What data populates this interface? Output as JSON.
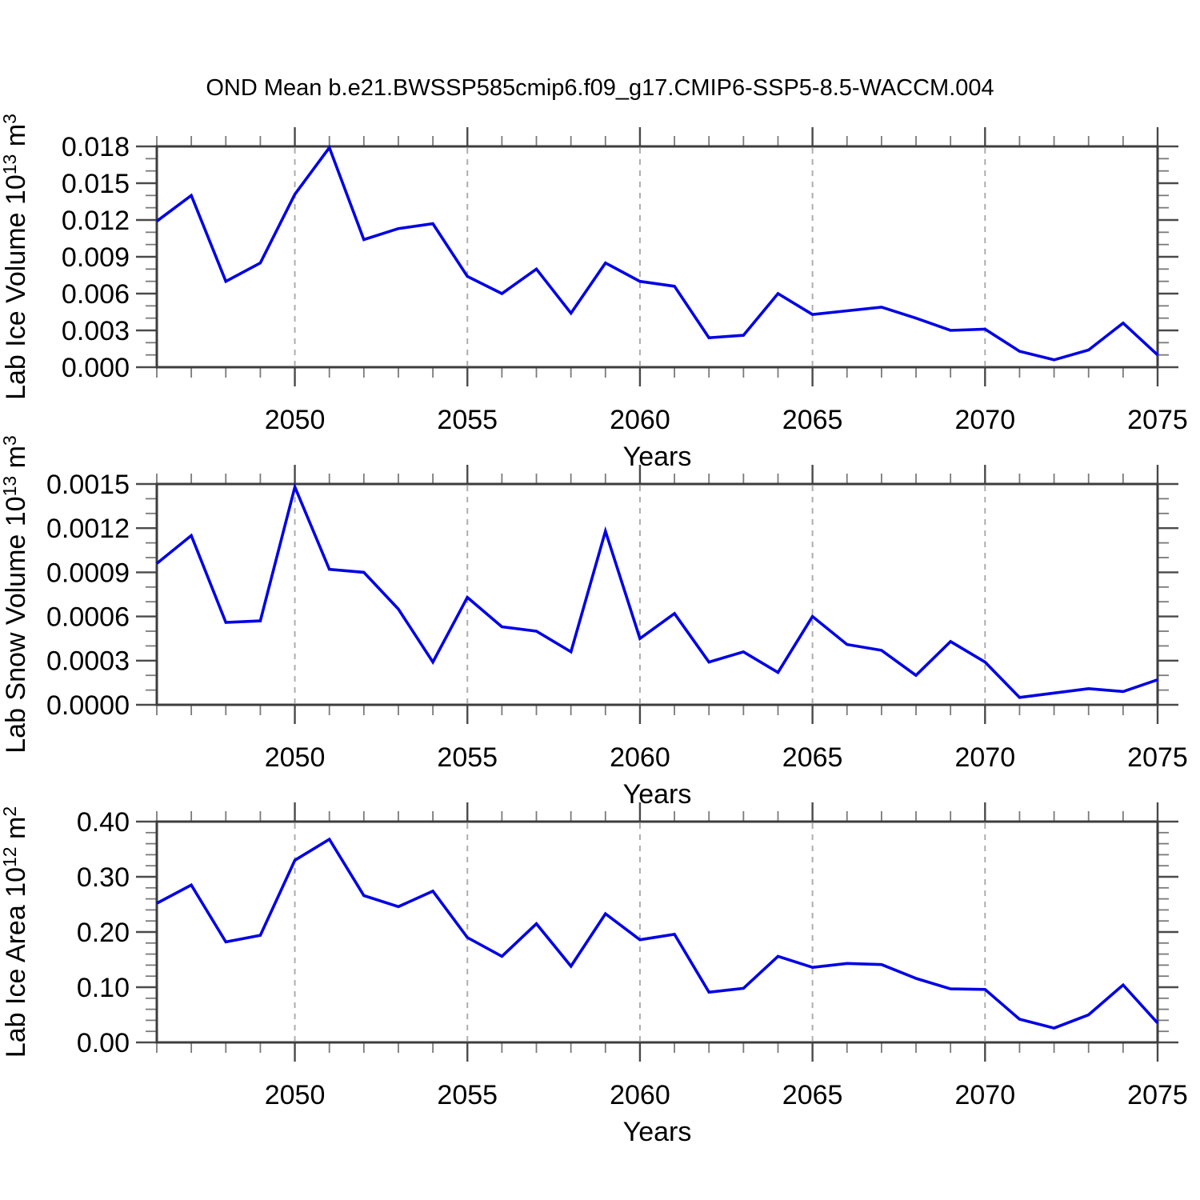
{
  "title": "OND Mean b.e21.BWSSP585cmip6.f09_g17.CMIP6-SSP5-8.5-WACCM.004",
  "colors": {
    "line": "#0000e6",
    "axis": "#3d3d3d",
    "tick_major": "#4a4a4a",
    "tick_minor": "#7a7a7a",
    "grid": "#adadad",
    "text": "#000000",
    "background": "#ffffff"
  },
  "x_axis": {
    "label": "Years",
    "min": 2046,
    "max": 2075,
    "major_ticks": [
      2050,
      2055,
      2060,
      2065,
      2070,
      2075
    ],
    "major_tick_labels": [
      "2050",
      "2055",
      "2060",
      "2065",
      "2070",
      "2075"
    ],
    "gridlines": [
      2050,
      2055,
      2060,
      2065,
      2070
    ],
    "minor_step": 1
  },
  "years": [
    2046,
    2047,
    2048,
    2049,
    2050,
    2051,
    2052,
    2053,
    2054,
    2055,
    2056,
    2057,
    2058,
    2059,
    2060,
    2061,
    2062,
    2063,
    2064,
    2065,
    2066,
    2067,
    2068,
    2069,
    2070,
    2071,
    2072,
    2073,
    2074,
    2075
  ],
  "chart_data": [
    {
      "type": "line",
      "name": "lab-ice-volume",
      "ylabel_text": "Lab Ice Volume 10^13 m^3",
      "ylabel_parts": [
        [
          "Lab Ice Volume 10",
          false
        ],
        [
          "13",
          true
        ],
        [
          " m",
          false
        ],
        [
          "3",
          true
        ]
      ],
      "ylim": [
        0,
        0.018
      ],
      "ymajor_step": 0.003,
      "yminor_per_major": 3,
      "ytick_labels": [
        "0.000",
        "0.003",
        "0.006",
        "0.009",
        "0.012",
        "0.015",
        "0.018"
      ],
      "xlabel": "Years",
      "grid": "vertical-dashed",
      "legend": "none",
      "values": [
        0.0119,
        0.014,
        0.007,
        0.0085,
        0.0141,
        0.0179,
        0.0104,
        0.0113,
        0.0117,
        0.0074,
        0.006,
        0.008,
        0.0044,
        0.0085,
        0.007,
        0.0066,
        0.0024,
        0.0026,
        0.006,
        0.0043,
        0.0046,
        0.0049,
        0.004,
        0.003,
        0.0031,
        0.0013,
        0.0006,
        0.0014,
        0.0036,
        0.001
      ]
    },
    {
      "type": "line",
      "name": "lab-snow-volume",
      "ylabel_text": "Lab Snow Volume 10^13 m^3",
      "ylabel_parts": [
        [
          "Lab Snow Volume 10",
          false
        ],
        [
          "13",
          true
        ],
        [
          " m",
          false
        ],
        [
          "3",
          true
        ]
      ],
      "ylim": [
        0,
        0.0015
      ],
      "ymajor_step": 0.0003,
      "yminor_per_major": 3,
      "ytick_labels": [
        "0.0000",
        "0.0003",
        "0.0006",
        "0.0009",
        "0.0012",
        "0.0015"
      ],
      "xlabel": "Years",
      "grid": "vertical-dashed",
      "legend": "none",
      "values": [
        0.00096,
        0.00115,
        0.00056,
        0.00057,
        0.00148,
        0.00092,
        0.0009,
        0.00065,
        0.00029,
        0.00073,
        0.00053,
        0.0005,
        0.00036,
        0.00118,
        0.00045,
        0.00062,
        0.00029,
        0.00036,
        0.00022,
        0.0006,
        0.00041,
        0.00037,
        0.0002,
        0.00043,
        0.00029,
        5e-05,
        8e-05,
        0.00011,
        9e-05,
        0.00017
      ]
    },
    {
      "type": "line",
      "name": "lab-ice-area",
      "ylabel_text": "Lab Ice Area 10^12 m^2",
      "ylabel_parts": [
        [
          "Lab Ice Area 10",
          false
        ],
        [
          "12",
          true
        ],
        [
          " m",
          false
        ],
        [
          "2",
          true
        ]
      ],
      "ylim": [
        0,
        0.4
      ],
      "ymajor_step": 0.1,
      "yminor_per_major": 5,
      "ytick_labels": [
        "0.00",
        "0.10",
        "0.20",
        "0.30",
        "0.40"
      ],
      "xlabel": "Years",
      "grid": "vertical-dashed",
      "legend": "none",
      "values": [
        0.252,
        0.285,
        0.182,
        0.194,
        0.33,
        0.368,
        0.266,
        0.246,
        0.274,
        0.19,
        0.156,
        0.215,
        0.138,
        0.233,
        0.186,
        0.196,
        0.091,
        0.098,
        0.156,
        0.136,
        0.143,
        0.141,
        0.116,
        0.097,
        0.096,
        0.042,
        0.026,
        0.05,
        0.104,
        0.035
      ]
    }
  ]
}
